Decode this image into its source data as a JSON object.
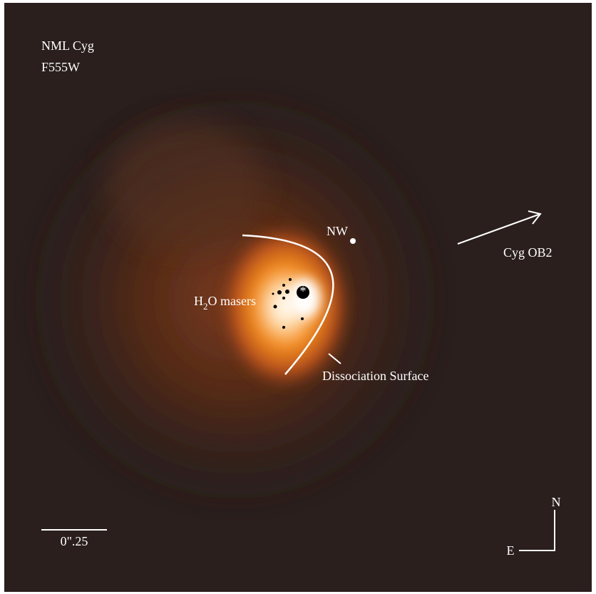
{
  "image": {
    "target": "NML Cyg",
    "filter": "F555W",
    "labels": {
      "nw": "NW",
      "cyg_ob2": "Cyg OB2",
      "masers": {
        "h": "H",
        "sub": "2",
        "rest": "O masers"
      },
      "dissociation": "Dissociation Surface",
      "scale": "0\".25",
      "north": "N",
      "east": "E"
    }
  }
}
